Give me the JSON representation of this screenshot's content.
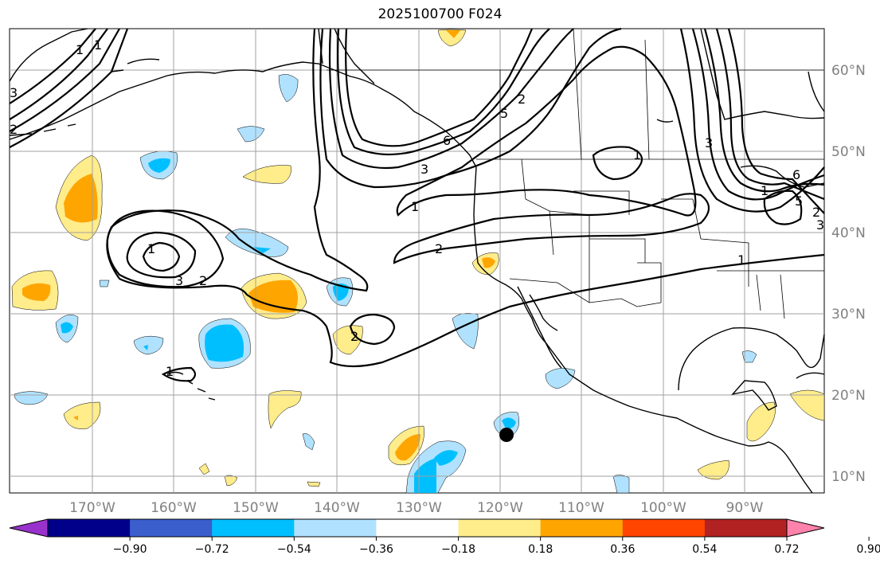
{
  "title": "2025100700 F024",
  "lat_labels": [
    "60°N",
    "50°N",
    "40°N",
    "30°N",
    "20°N",
    "10°N"
  ],
  "lon_labels": [
    "170°W",
    "160°W",
    "150°W",
    "140°W",
    "130°W",
    "120°W",
    "110°W",
    "100°W",
    "90°W"
  ],
  "colorbar": {
    "ticks": [
      "−0.90",
      "−0.72",
      "−0.54",
      "−0.36",
      "−0.18",
      "0.18",
      "0.36",
      "0.54",
      "0.72",
      "0.90"
    ],
    "colors": [
      "#9932cc",
      "#00008b",
      "#3a5fcd",
      "#00bfff",
      "#b0e2ff",
      "#ffffff",
      "#ffec8b",
      "#ffa500",
      "#ff4500",
      "#b22222",
      "#ff82ab"
    ]
  },
  "shading_colors": {
    "light_blue": "#b0e2ff",
    "blue": "#00bfff",
    "light_yellow": "#ffec8b",
    "orange": "#ffa500"
  },
  "contour_labels": [
    "1",
    "1",
    "2",
    "3",
    "3",
    "2",
    "1",
    "1",
    "2",
    "3",
    "2",
    "1",
    "1",
    "1",
    "6",
    "5",
    "2",
    "3",
    "6",
    "5",
    "1",
    "2",
    "3"
  ],
  "marker": {
    "lat": 15,
    "lon": -119,
    "color": "#000000"
  }
}
